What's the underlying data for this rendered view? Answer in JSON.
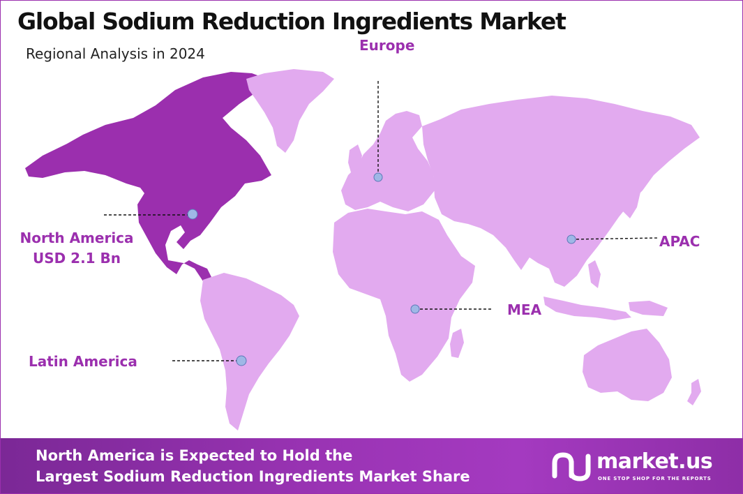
{
  "title": "Global Sodium Reduction Ingredients Market",
  "subtitle": "Regional Analysis in 2024",
  "colors": {
    "highlight_region": "#9b2fae",
    "other_regions": "#e2aaef",
    "label_text": "#9b2fae",
    "marker": "#9fb7e6",
    "footer_start": "#7b2896",
    "footer_end": "#a43ac0"
  },
  "regions": [
    {
      "id": "north-america",
      "label": "North America",
      "value": "USD 2.1 Bn",
      "highlighted": true
    },
    {
      "id": "europe",
      "label": "Europe",
      "value": "",
      "highlighted": false
    },
    {
      "id": "apac",
      "label": "APAC",
      "value": "",
      "highlighted": false
    },
    {
      "id": "mea",
      "label": "MEA",
      "value": "",
      "highlighted": false
    },
    {
      "id": "latin-america",
      "label": "Latin America",
      "value": "",
      "highlighted": false
    }
  ],
  "footer": {
    "line1": "North America is Expected to Hold the",
    "line2": "Largest Sodium Reduction Ingredients Market Share"
  },
  "brand": {
    "name": "market.us",
    "tagline": "ONE STOP SHOP FOR THE REPORTS",
    "logo_icon": "market-us-logo-icon"
  }
}
